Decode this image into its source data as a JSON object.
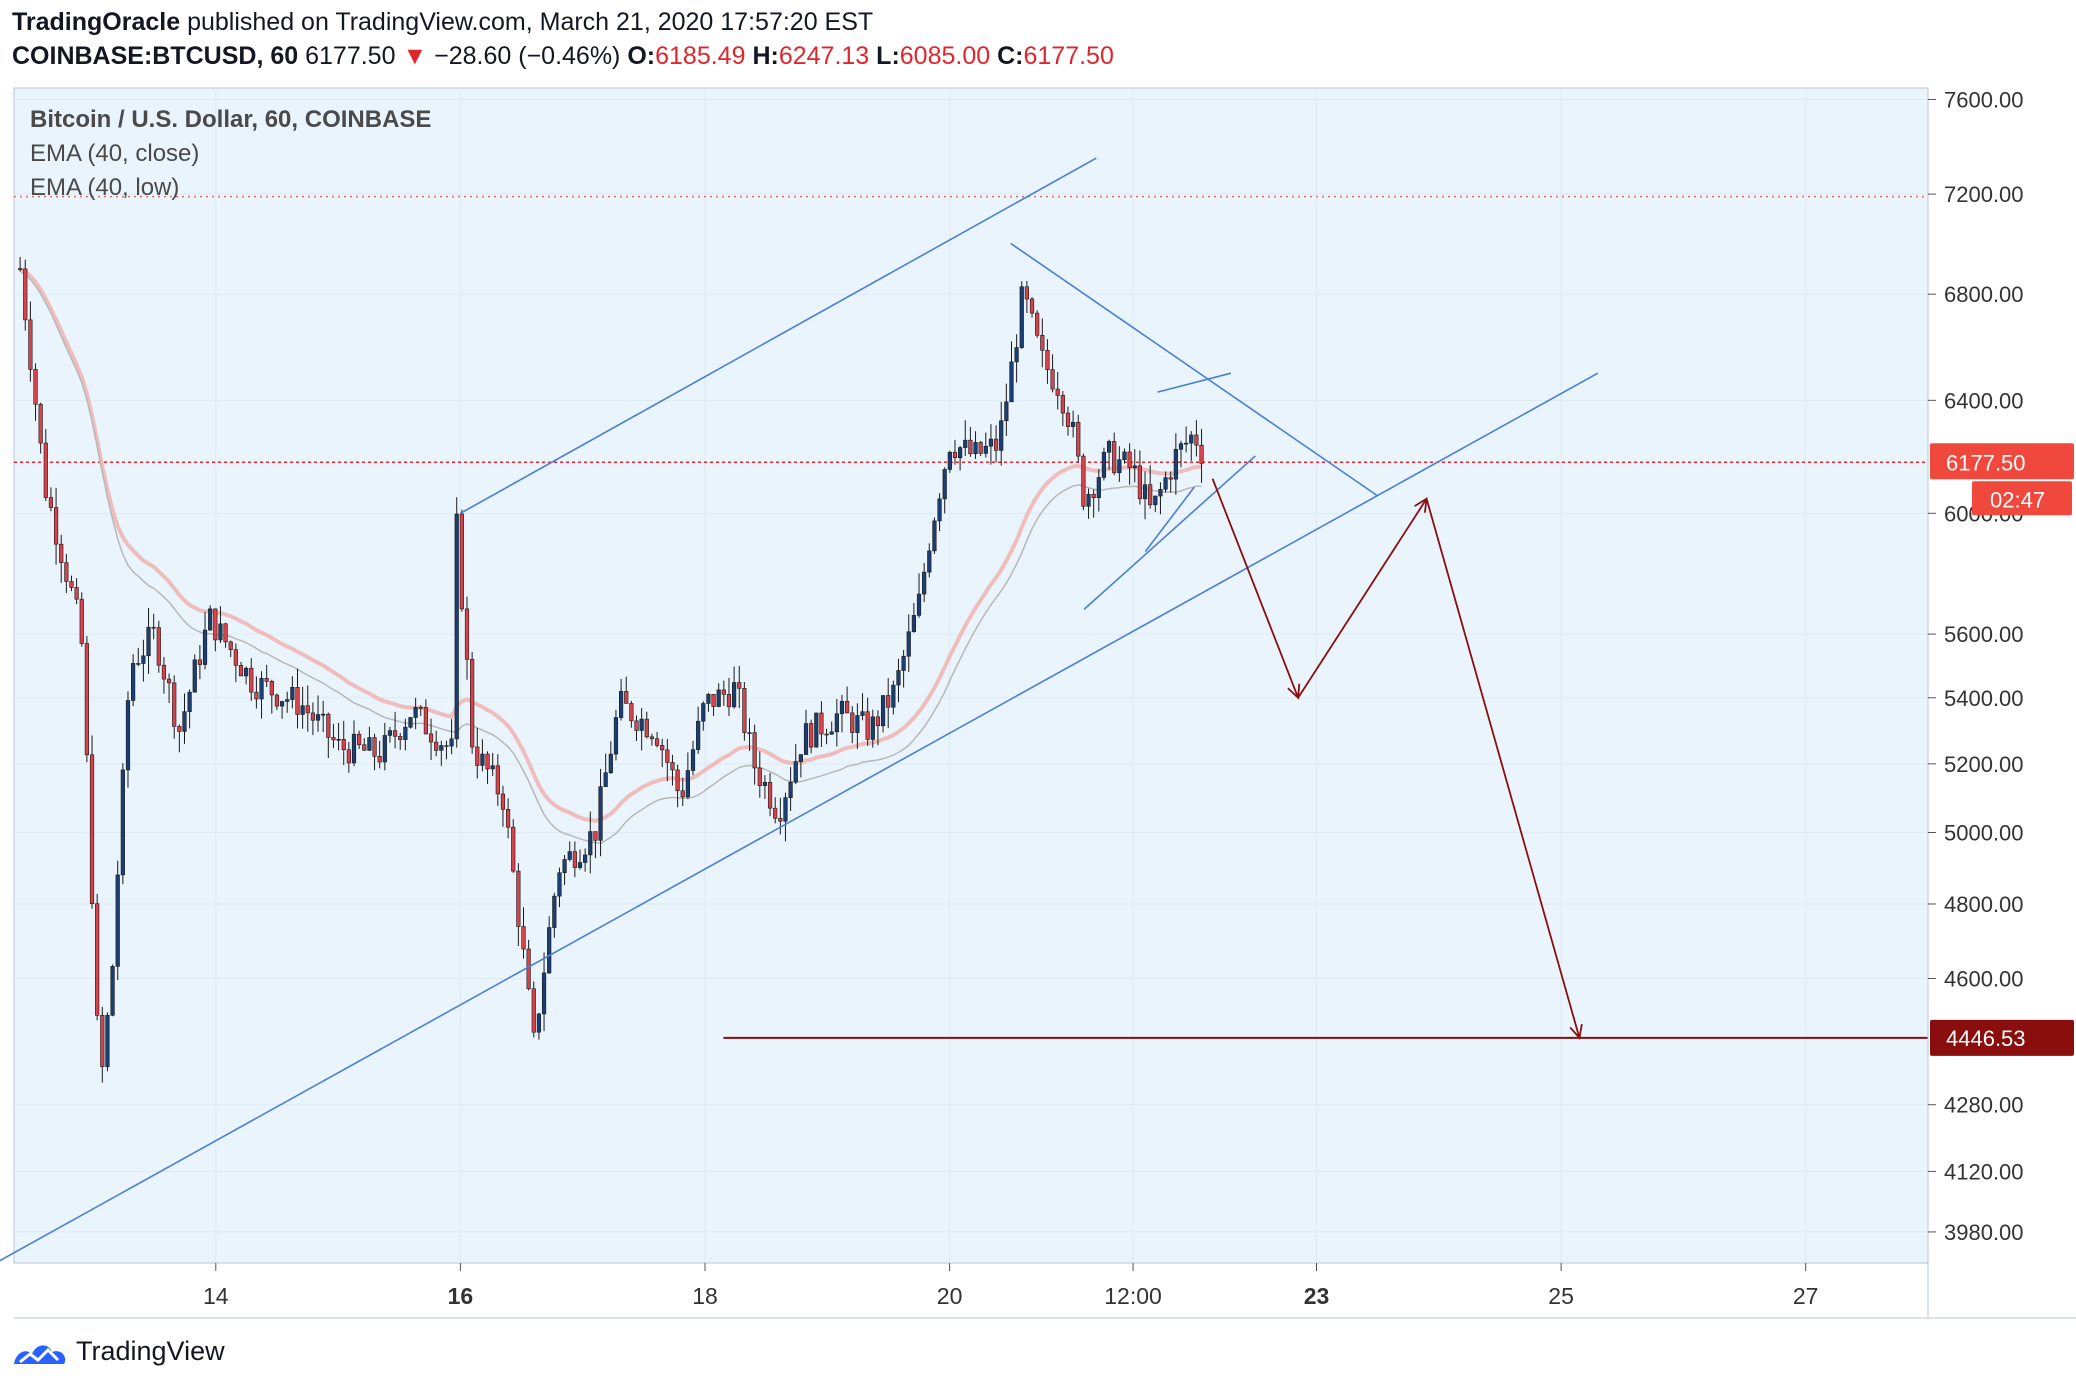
{
  "header": {
    "author": "TradingOracle",
    "published_text": "published on TradingView.com, March 21, 2020 17:57:20 EST",
    "symbol": "COINBASE:BTCUSD, 60",
    "last": "6177.50",
    "change_arrow": "▼",
    "change": "−28.60 (−0.46%)",
    "o_label": "O:",
    "o_value": "6185.49",
    "h_label": "H:",
    "h_value": "6247.13",
    "l_label": "L:",
    "l_value": "6085.00",
    "c_label": "C:",
    "c_value": "6177.50"
  },
  "legend": {
    "title": "Bitcoin / U.S. Dollar, 60, COINBASE",
    "ema1": "EMA (40, close)",
    "ema2": "EMA (40, low)"
  },
  "footer": {
    "brand": "TradingView",
    "logo_icon": "tradingview-logo-icon"
  },
  "colors": {
    "background": "#eaf4fc",
    "up": "#1c3f73",
    "down": "#d6434a",
    "trendline": "#4a7fd4",
    "arrow": "#8b0e0e",
    "price_badge": "#f0483c",
    "target_badge": "#8b0e0e"
  },
  "chart_data": {
    "type": "candlestick",
    "symbol": "BTCUSD",
    "interval": "60",
    "y_axis_scale": "log",
    "ylim": [
      3910,
      7650
    ],
    "y_ticks": [
      7600,
      7200,
      6800,
      6400,
      6000,
      5600,
      5400,
      5200,
      5000,
      4800,
      4600,
      4280,
      4120,
      3980
    ],
    "y_tick_labels": [
      "7600.00",
      "7200.00",
      "6800.00",
      "6400.00",
      "6000.00",
      "5600.00",
      "5400.00",
      "5200.00",
      "5000.00",
      "4800.00",
      "4600.00",
      "4280.00",
      "4120.00",
      "3980.00"
    ],
    "x_ticks": [
      {
        "label": "14",
        "day": 14,
        "bold": false
      },
      {
        "label": "16",
        "day": 16,
        "bold": true
      },
      {
        "label": "18",
        "day": 18,
        "bold": false
      },
      {
        "label": "20",
        "day": 20,
        "bold": false
      },
      {
        "label": "12:00",
        "day": 21.5,
        "bold": false
      },
      {
        "label": "23",
        "day": 23,
        "bold": true
      },
      {
        "label": "25",
        "day": 25,
        "bold": false
      },
      {
        "label": "27",
        "day": 27,
        "bold": false
      }
    ],
    "xlim": [
      12.35,
      28.0
    ],
    "last_price": {
      "value": 6177.5,
      "label": "6177.50",
      "countdown": "02:47"
    },
    "target_level": {
      "value": 4446.53,
      "label": "4446.53",
      "from_day": 18.15
    },
    "dotted_level": 7190,
    "anchors": [
      {
        "day": 12.4,
        "price": 6900
      },
      {
        "day": 12.6,
        "price": 6100
      },
      {
        "day": 12.9,
        "price": 5600
      },
      {
        "day": 13.05,
        "price": 4300
      },
      {
        "day": 13.15,
        "price": 4600
      },
      {
        "day": 13.3,
        "price": 5500
      },
      {
        "day": 13.5,
        "price": 5600
      },
      {
        "day": 13.7,
        "price": 5300
      },
      {
        "day": 13.95,
        "price": 5650
      },
      {
        "day": 14.3,
        "price": 5450
      },
      {
        "day": 14.7,
        "price": 5380
      },
      {
        "day": 15.0,
        "price": 5250
      },
      {
        "day": 15.35,
        "price": 5230
      },
      {
        "day": 15.6,
        "price": 5360
      },
      {
        "day": 15.95,
        "price": 5230
      },
      {
        "day": 15.97,
        "price": 5950
      },
      {
        "day": 16.1,
        "price": 5250
      },
      {
        "day": 16.35,
        "price": 5100
      },
      {
        "day": 16.5,
        "price": 4700
      },
      {
        "day": 16.6,
        "price": 4430
      },
      {
        "day": 16.8,
        "price": 4900
      },
      {
        "day": 17.1,
        "price": 5000
      },
      {
        "day": 17.3,
        "price": 5380
      },
      {
        "day": 17.6,
        "price": 5300
      },
      {
        "day": 17.8,
        "price": 5100
      },
      {
        "day": 18.0,
        "price": 5380
      },
      {
        "day": 18.25,
        "price": 5430
      },
      {
        "day": 18.4,
        "price": 5200
      },
      {
        "day": 18.6,
        "price": 5060
      },
      {
        "day": 18.8,
        "price": 5280
      },
      {
        "day": 19.1,
        "price": 5350
      },
      {
        "day": 19.35,
        "price": 5300
      },
      {
        "day": 19.55,
        "price": 5420
      },
      {
        "day": 19.75,
        "price": 5700
      },
      {
        "day": 19.85,
        "price": 5950
      },
      {
        "day": 20.0,
        "price": 6250
      },
      {
        "day": 20.2,
        "price": 6200
      },
      {
        "day": 20.4,
        "price": 6240
      },
      {
        "day": 20.5,
        "price": 6500
      },
      {
        "day": 20.6,
        "price": 6800
      },
      {
        "day": 20.75,
        "price": 6550
      },
      {
        "day": 20.9,
        "price": 6450
      },
      {
        "day": 21.0,
        "price": 6300
      },
      {
        "day": 21.1,
        "price": 6050
      },
      {
        "day": 21.3,
        "price": 6200
      },
      {
        "day": 21.5,
        "price": 6150
      },
      {
        "day": 21.65,
        "price": 6000
      },
      {
        "day": 21.85,
        "price": 6200
      },
      {
        "day": 22.0,
        "price": 6280
      },
      {
        "day": 22.1,
        "price": 6177.5
      }
    ],
    "drawings": {
      "trendlines": [
        {
          "p1": [
            12.2,
            3910
          ],
          "p2": [
            25.3,
            6500
          ]
        },
        {
          "p1": [
            16.0,
            6000
          ],
          "p2": [
            21.2,
            7350
          ]
        },
        {
          "p1": [
            20.5,
            7000
          ],
          "p2": [
            23.5,
            6060
          ]
        },
        {
          "p1": [
            21.7,
            6430
          ],
          "p2": [
            22.3,
            6500
          ]
        },
        {
          "p1": [
            21.1,
            5680
          ],
          "p2": [
            22.5,
            6200
          ]
        },
        {
          "p1": [
            21.6,
            5870
          ],
          "p2": [
            22.0,
            6090
          ]
        }
      ],
      "projection": [
        [
          22.15,
          6120
        ],
        [
          22.85,
          5400
        ],
        [
          23.9,
          6050
        ],
        [
          25.15,
          4446.53
        ]
      ]
    }
  }
}
